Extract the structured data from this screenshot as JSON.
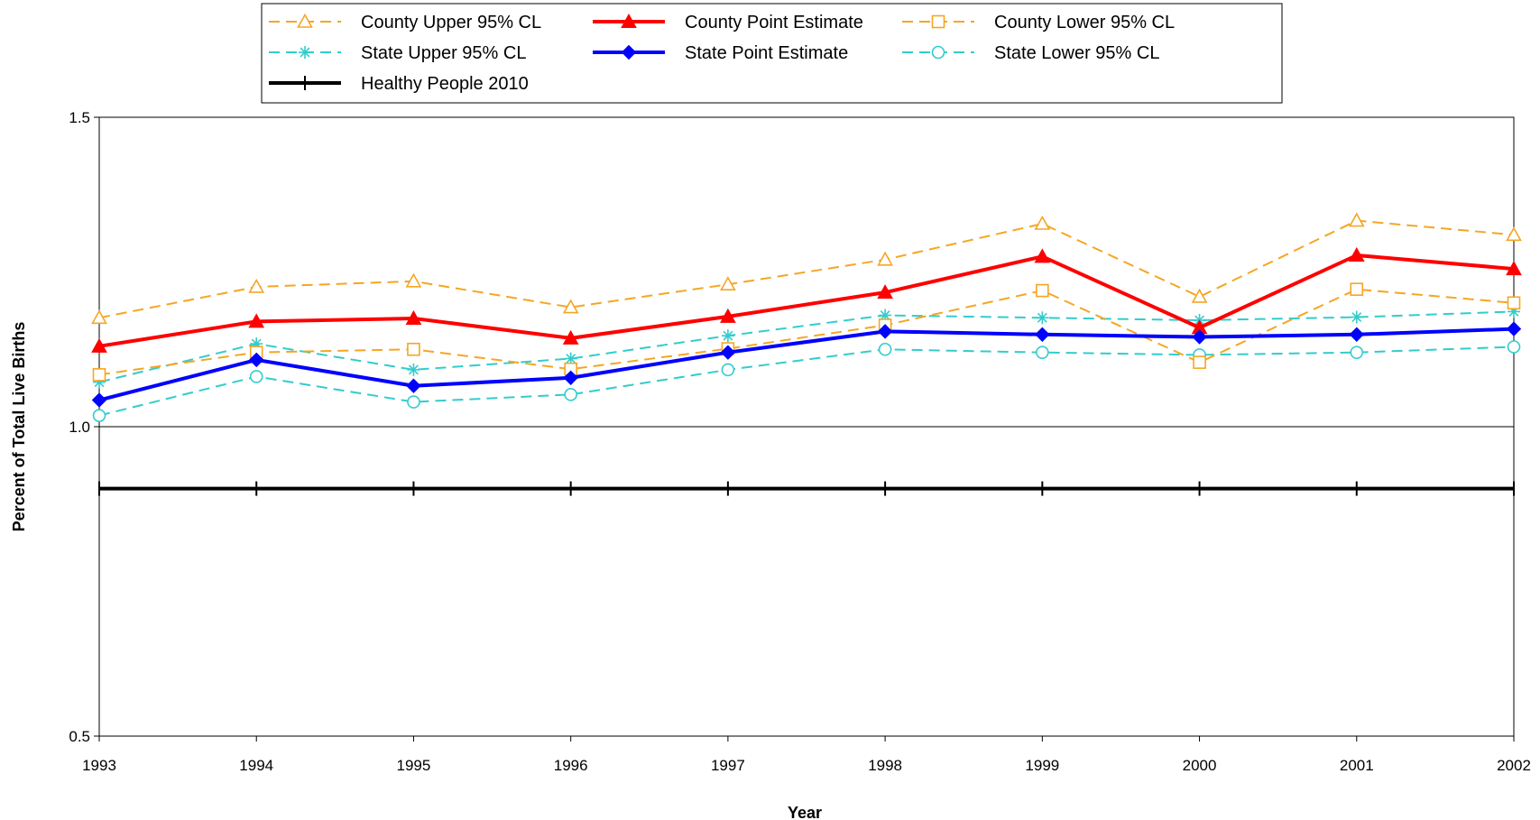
{
  "chart_data": {
    "type": "line",
    "xlabel": "Year",
    "ylabel": "Percent of Total Live Births",
    "ylim": [
      0.5,
      1.5
    ],
    "yticks": [
      "0.5",
      "1.0",
      "1.5"
    ],
    "categories": [
      "1993",
      "1994",
      "1995",
      "1996",
      "1997",
      "1998",
      "1999",
      "2000",
      "2001",
      "2002"
    ],
    "grid": "horizontal major gridline at 1.0",
    "legend_position": "top",
    "series": [
      {
        "name": "County Upper 95% CL",
        "color": "#F5A623",
        "dash": "dashed",
        "marker": "triangle-open",
        "values": [
          1.176,
          1.226,
          1.235,
          1.193,
          1.23,
          1.27,
          1.328,
          1.21,
          1.333,
          1.31
        ]
      },
      {
        "name": "County Point Estimate",
        "color": "#FF0000",
        "dash": "solid",
        "marker": "triangle-filled",
        "values": [
          1.13,
          1.17,
          1.175,
          1.143,
          1.178,
          1.217,
          1.275,
          1.16,
          1.277,
          1.255
        ]
      },
      {
        "name": "County Lower 95% CL",
        "color": "#F5A623",
        "dash": "dashed",
        "marker": "square-open",
        "values": [
          1.084,
          1.12,
          1.125,
          1.093,
          1.126,
          1.164,
          1.22,
          1.104,
          1.222,
          1.2
        ]
      },
      {
        "name": "State Upper 95% CL",
        "color": "#33CCCC",
        "dash": "dashed",
        "marker": "asterisk",
        "values": [
          1.072,
          1.134,
          1.092,
          1.11,
          1.147,
          1.18,
          1.176,
          1.172,
          1.177,
          1.186
        ]
      },
      {
        "name": "State Point Estimate",
        "color": "#0000FF",
        "dash": "solid",
        "marker": "diamond-filled",
        "values": [
          1.043,
          1.108,
          1.066,
          1.079,
          1.12,
          1.154,
          1.149,
          1.145,
          1.149,
          1.158
        ]
      },
      {
        "name": "State Lower 95% CL",
        "color": "#33CCCC",
        "dash": "dashed",
        "marker": "circle-open",
        "values": [
          1.018,
          1.081,
          1.04,
          1.052,
          1.092,
          1.125,
          1.12,
          1.116,
          1.12,
          1.129
        ]
      },
      {
        "name": "Healthy People 2010",
        "color": "#000000",
        "dash": "solid",
        "marker": "plus",
        "values": [
          0.9,
          0.9,
          0.9,
          0.9,
          0.9,
          0.9,
          0.9,
          0.9,
          0.9,
          0.9
        ]
      }
    ]
  }
}
